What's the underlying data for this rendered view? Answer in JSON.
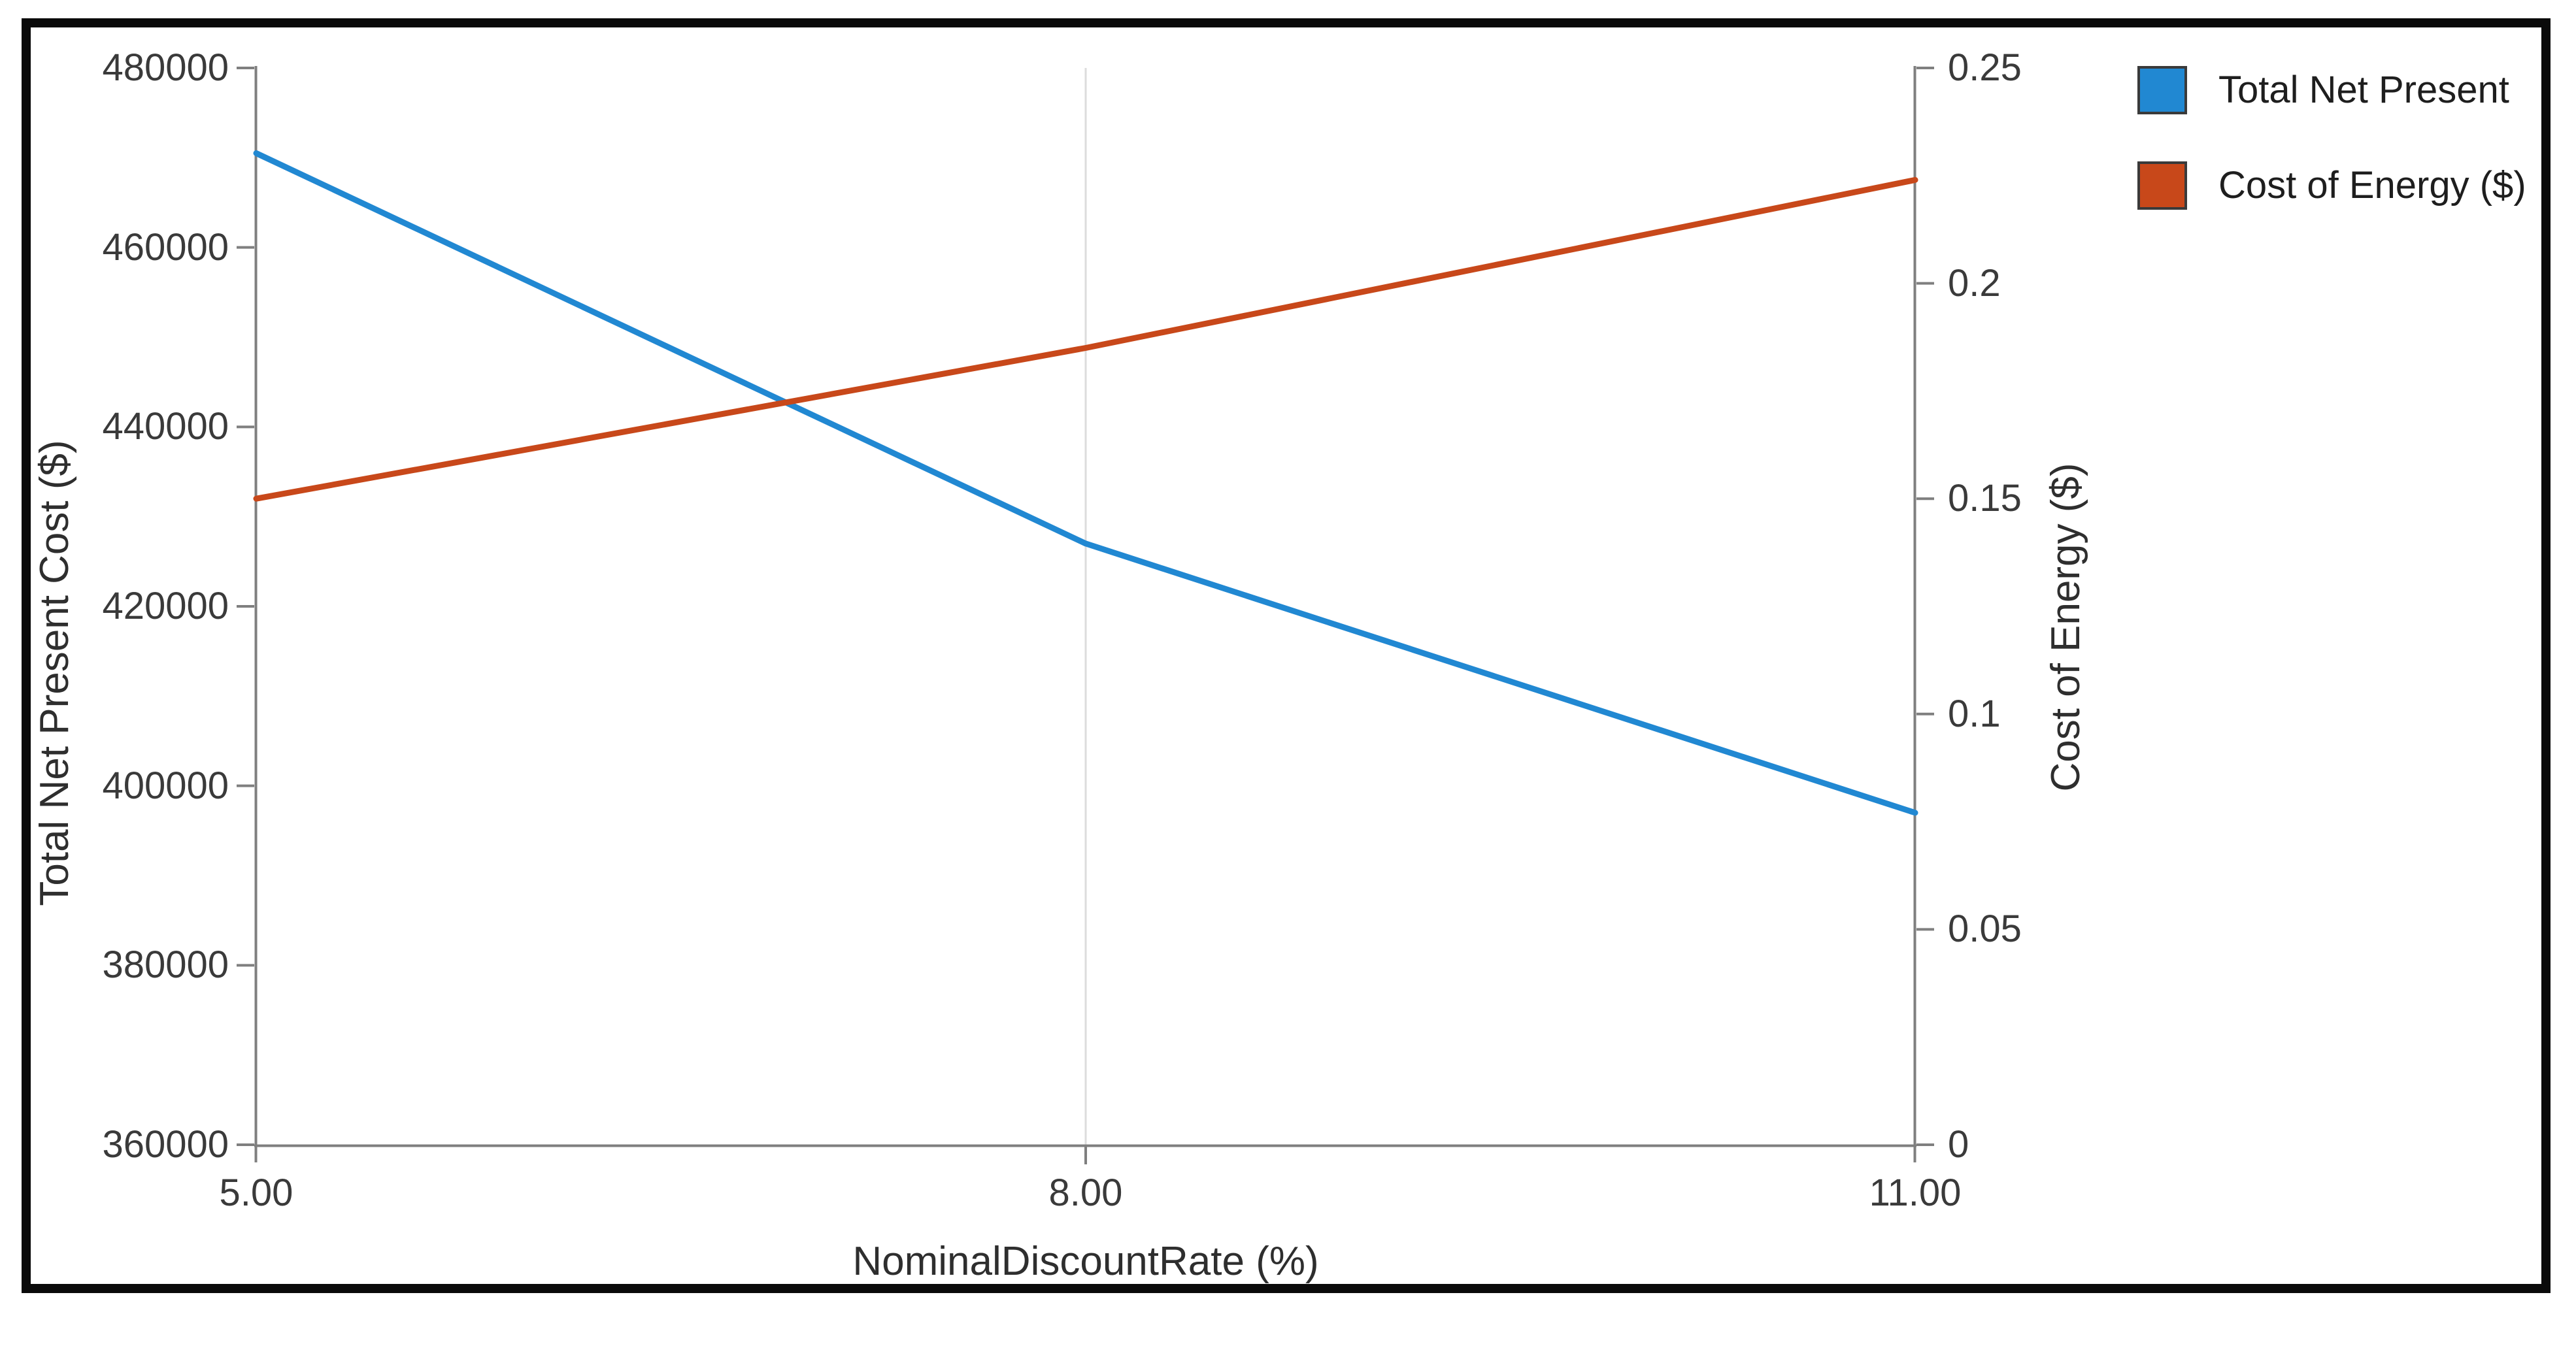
{
  "chart_data": {
    "type": "line",
    "title": "",
    "xlabel": "NominalDiscountRate (%)",
    "ylabel_left": "Total Net Present Cost ($)",
    "ylabel_right": "Cost of Energy ($)",
    "xlim": [
      5,
      11
    ],
    "x_ticks": {
      "values": [
        5,
        8,
        11
      ],
      "labels": [
        "5.00",
        "8.00",
        "11.00"
      ]
    },
    "left_axis": {
      "range": [
        360000,
        480000
      ],
      "tick_values": [
        480000,
        460000,
        440000,
        420000,
        400000,
        380000,
        360000
      ],
      "tick_labels": [
        "480000",
        "460000",
        "440000",
        "420000",
        "400000",
        "380000",
        "360000"
      ]
    },
    "right_axis": {
      "range": [
        0,
        0.25
      ],
      "tick_values": [
        0.25,
        0.2,
        0.15,
        0.1,
        0.05,
        0
      ],
      "tick_labels": [
        "0.25",
        "0.2",
        "0.15",
        "0.1",
        "0.05",
        "0"
      ]
    },
    "gridlines_x": [
      8
    ],
    "grid_color": "#dcdcdc",
    "axis_color": "#7f7f7f",
    "legend_position": "top-right-outside",
    "series": [
      {
        "name": "Total Net Present",
        "axis": "left",
        "color": "#2188d2",
        "x": [
          5,
          8,
          11
        ],
        "values": [
          470500,
          427000,
          397000
        ]
      },
      {
        "name": "Cost of Energy ($)",
        "axis": "right",
        "color": "#c8481a",
        "x": [
          5,
          8,
          11
        ],
        "values": [
          0.15,
          0.185,
          0.224
        ]
      }
    ]
  },
  "legend": {
    "items": [
      {
        "label": "Total Net Present",
        "color": "#2188d2"
      },
      {
        "label": "Cost of Energy ($)",
        "color": "#c8481a"
      }
    ]
  }
}
